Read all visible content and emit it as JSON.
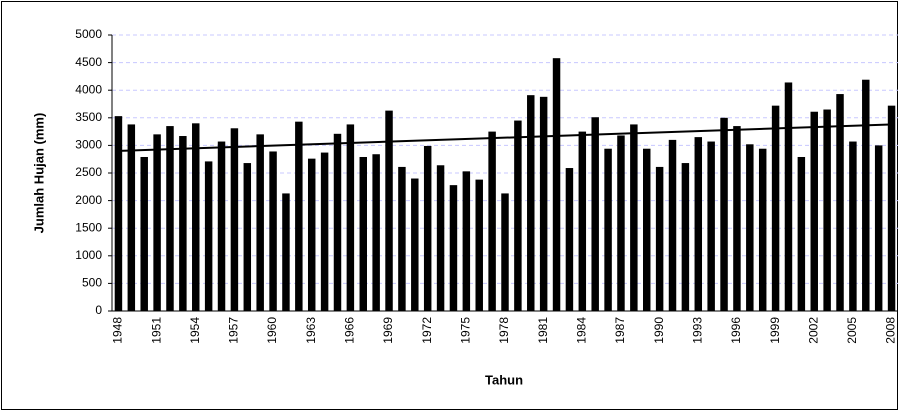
{
  "chart_data": {
    "type": "bar",
    "x_label": "Tahun",
    "y_label": "Jumlah Hujan (mm)",
    "categories": [
      "1948",
      null,
      null,
      "1951",
      null,
      null,
      "1954",
      null,
      null,
      "1957",
      null,
      null,
      "1960",
      null,
      null,
      "1963",
      null,
      null,
      "1966",
      null,
      null,
      "1969",
      null,
      null,
      "1972",
      null,
      null,
      "1975",
      null,
      null,
      "1978",
      null,
      null,
      "1981",
      null,
      null,
      "1984",
      null,
      null,
      "1987",
      null,
      null,
      "1990",
      null,
      null,
      "1993",
      null,
      null,
      "1996",
      null,
      null,
      "1999",
      null,
      null,
      "2002",
      null,
      null,
      "2005",
      null,
      null,
      "2008"
    ],
    "values": [
      3530,
      3380,
      2790,
      3200,
      3350,
      3170,
      3400,
      2710,
      3070,
      3310,
      2680,
      3200,
      2890,
      2130,
      3430,
      2760,
      2870,
      3210,
      3380,
      2790,
      2840,
      3630,
      2610,
      2400,
      2990,
      2640,
      2280,
      2530,
      2380,
      3250,
      2130,
      3450,
      3910,
      3880,
      4580,
      2590,
      3250,
      3510,
      2940,
      3180,
      3380,
      2940,
      2610,
      3100,
      2680,
      3150,
      3070,
      3500,
      3350,
      3020,
      2940,
      3720,
      4140,
      2790,
      3610,
      3650,
      3930,
      3070,
      4190,
      3000,
      3720
    ],
    "color": "#000000",
    "trend": [
      2900,
      3380
    ],
    "ylim": [
      0,
      5000
    ],
    "yticks": [
      0,
      500,
      1000,
      1500,
      2000,
      2500,
      3000,
      3500,
      4000,
      4500,
      5000
    ],
    "grid": true
  }
}
